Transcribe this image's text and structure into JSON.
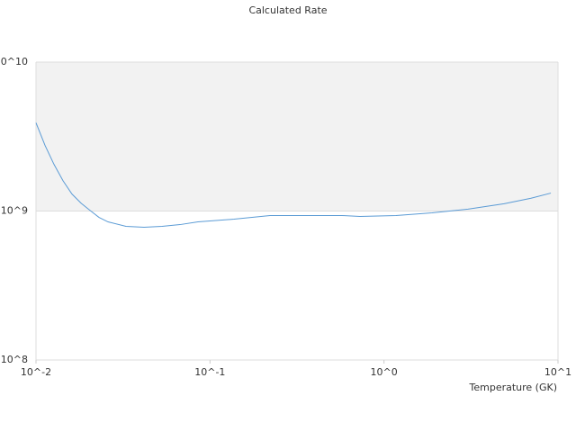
{
  "chart_data": {
    "type": "line",
    "title": "Calculated Rate",
    "x_label": "Temperature (GK)",
    "log_x": true,
    "log_y": true,
    "grid": true,
    "xlim": [
      0.01,
      10
    ],
    "ylim": [
      100000000,
      10000000000
    ],
    "xticks": [
      {
        "value": 0.01,
        "label": "10^-2"
      },
      {
        "value": 0.1,
        "label": "10^-1"
      },
      {
        "value": 1,
        "label": "10^0"
      },
      {
        "value": 10,
        "label": "10^1"
      }
    ],
    "yticks": [
      {
        "value": 100000000,
        "label": "10^8"
      },
      {
        "value": 1000000000,
        "label": "10^9"
      },
      {
        "value": 10000000000,
        "label": "10^10"
      }
    ],
    "series": [
      {
        "color": "#5b9bd5",
        "x": [
          0.01,
          0.01127,
          0.01268,
          0.01429,
          0.0161,
          0.01815,
          0.02043,
          0.02302,
          0.02594,
          0.03289,
          0.04177,
          0.05297,
          0.06729,
          0.0853,
          0.1374,
          0.2213,
          0.3564,
          0.574,
          0.728,
          1.172,
          1.888,
          3.04,
          4.9,
          7.0,
          9.1
        ],
        "values": [
          3910000000,
          2760000000,
          2060000000,
          1600000000,
          1300000000,
          1130000000,
          1010000000,
          907000000,
          846000000,
          789000000,
          778000000,
          789000000,
          811000000,
          846000000,
          882000000,
          933000000,
          933000000,
          933000000,
          920000000,
          933000000,
          972000000,
          1030000000,
          1120000000,
          1220000000,
          1320000000
        ]
      }
    ]
  }
}
